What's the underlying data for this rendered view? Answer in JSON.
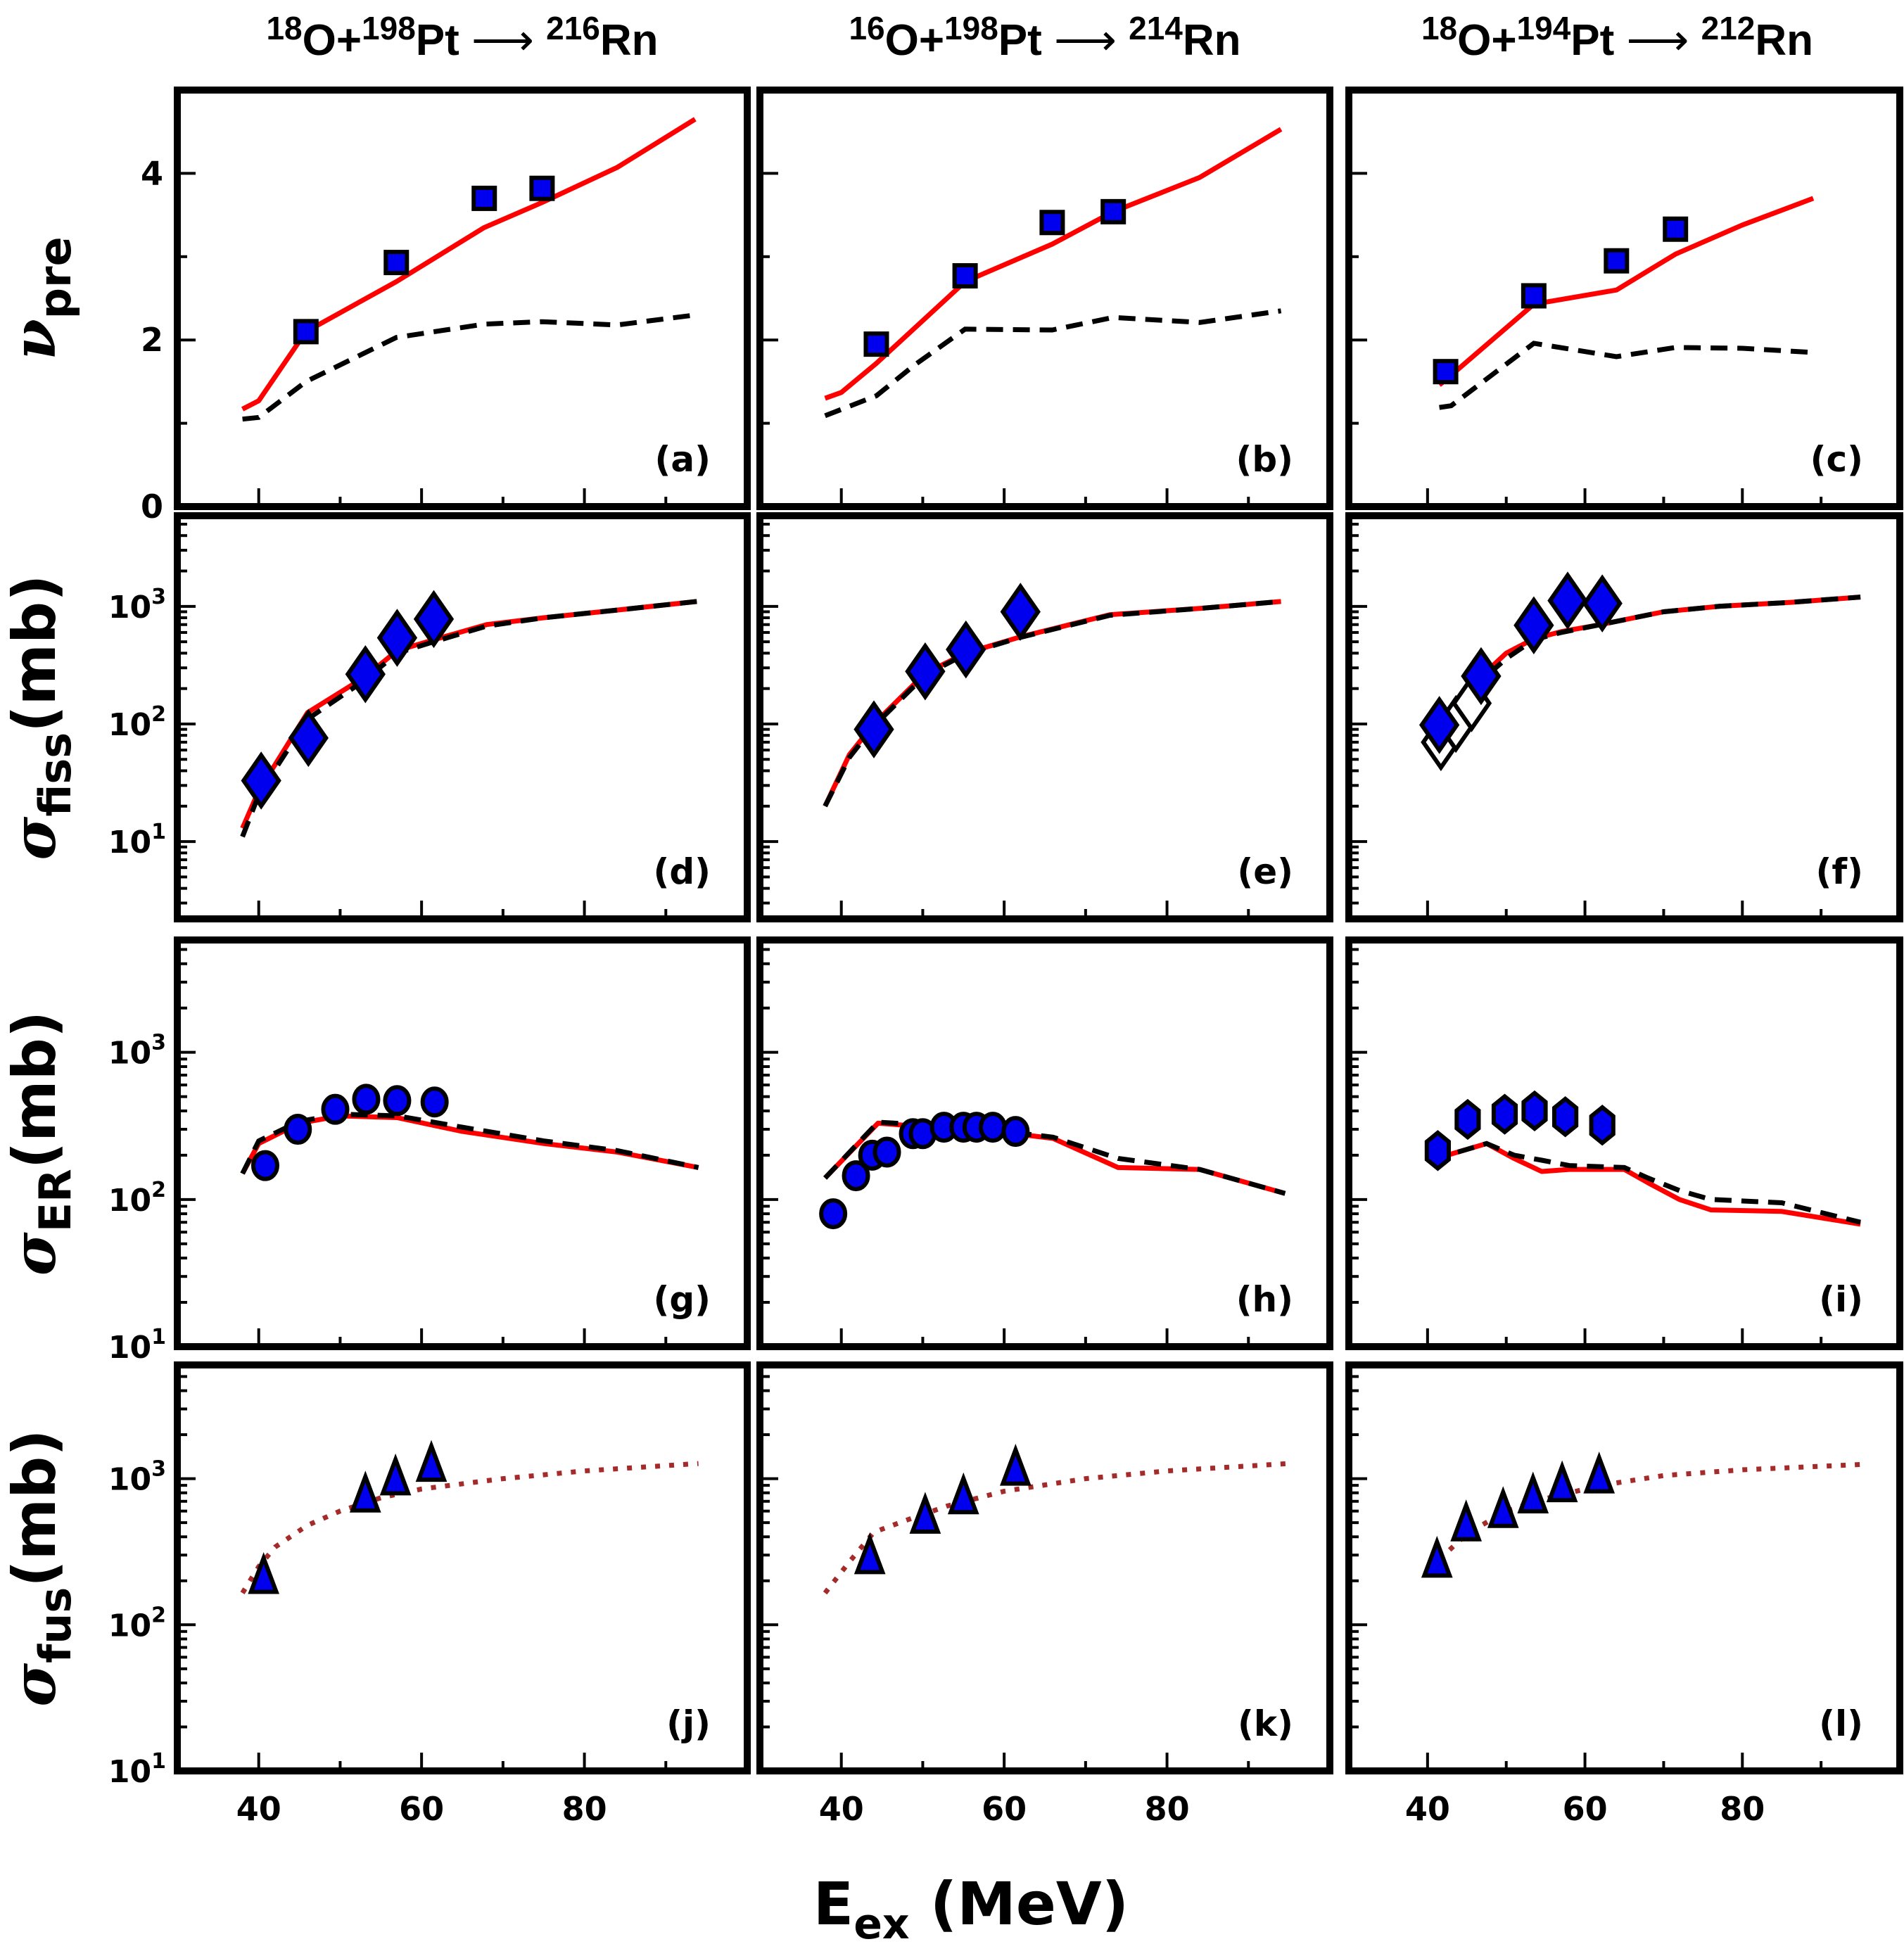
{
  "chart_data": {
    "type": "scatter",
    "layout": "4x3 grid of panels sharing x axis",
    "xlabel": "E",
    "xlabel_sub": "ex",
    "xlabel_unit": " (MeV)",
    "xlim": [
      30,
      100
    ],
    "x_ticks": [
      40,
      60,
      80
    ],
    "x_minor_ticks": [
      50,
      70,
      90
    ],
    "colors": {
      "marker_fill": "#0000EE",
      "marker_edge": "#000000",
      "solid_line": "#FF0000",
      "dashed_line": "#000000",
      "dotted_line": "#A52A2A",
      "open_marker_fill": "#FFFFFF"
    },
    "columns": [
      {
        "proj_mass": "18",
        "proj": "O",
        "target_mass": "198",
        "target": "Pt",
        "cn_mass": "216",
        "cn": "Rn"
      },
      {
        "proj_mass": "16",
        "proj": "O",
        "target_mass": "198",
        "target": "Pt",
        "cn_mass": "214",
        "cn": "Rn"
      },
      {
        "proj_mass": "18",
        "proj": "O",
        "target_mass": "194",
        "target": "Pt",
        "cn_mass": "212",
        "cn": "Rn"
      }
    ],
    "rows": [
      {
        "ylabel": "ν",
        "ylabel_sub": "pre",
        "ylabel_unit": "",
        "scale": "linear",
        "ylim": [
          0,
          5.0
        ],
        "y_ticks": [
          0,
          2,
          4
        ],
        "y_tick_labels": [
          "0",
          "2",
          "4"
        ],
        "y_minor_ticks": [
          1,
          3
        ]
      },
      {
        "ylabel": "σ",
        "ylabel_sub": "fiss",
        "ylabel_unit": "(mb)",
        "scale": "log",
        "ylim": [
          2.2,
          5900
        ],
        "y_ticks": [
          10,
          100,
          1000
        ],
        "y_tick_labels": [
          "10",
          "10",
          "10"
        ],
        "y_tick_exps": [
          "1",
          "2",
          "3"
        ]
      },
      {
        "ylabel": "σ",
        "ylabel_sub": "ER",
        "ylabel_unit": "(mb)",
        "scale": "log",
        "ylim": [
          10,
          5800
        ],
        "y_ticks": [
          10,
          100,
          1000
        ],
        "y_tick_labels": [
          "10",
          "10",
          "10"
        ],
        "y_tick_exps": [
          "1",
          "2",
          "3"
        ]
      },
      {
        "ylabel": "σ",
        "ylabel_sub": "fus",
        "ylabel_unit": "(mb)",
        "scale": "log",
        "ylim": [
          10,
          6000
        ],
        "y_ticks": [
          10,
          100,
          1000
        ],
        "y_tick_labels": [
          "10",
          "10",
          "10"
        ],
        "y_tick_exps": [
          "1",
          "2",
          "3"
        ]
      }
    ],
    "panels": [
      {
        "label": "(a)",
        "row": 0,
        "col": 0,
        "marker": "square",
        "points": {
          "x": [
            45.8,
            56.9,
            67.7,
            74.8
          ],
          "y": [
            2.1,
            2.93,
            3.7,
            3.82
          ]
        },
        "solid": {
          "x": [
            38,
            40,
            45.8,
            56.9,
            67.7,
            74.8,
            84,
            93.6
          ],
          "y": [
            1.17,
            1.27,
            2.1,
            2.7,
            3.35,
            3.65,
            4.07,
            4.65
          ]
        },
        "dashed": {
          "x": [
            38,
            40,
            45.8,
            56.9,
            67.7,
            74.8,
            84,
            93.6
          ],
          "y": [
            1.05,
            1.07,
            1.5,
            2.03,
            2.19,
            2.22,
            2.18,
            2.3
          ]
        }
      },
      {
        "label": "(b)",
        "row": 0,
        "col": 1,
        "marker": "square",
        "points": {
          "x": [
            44.3,
            55.2,
            65.9,
            73.4
          ],
          "y": [
            1.95,
            2.77,
            3.41,
            3.54
          ]
        },
        "solid": {
          "x": [
            38,
            40,
            44.3,
            55.2,
            65.9,
            73.4,
            84,
            94
          ],
          "y": [
            1.3,
            1.37,
            1.72,
            2.7,
            3.15,
            3.54,
            3.95,
            4.53
          ]
        },
        "dashed": {
          "x": [
            38,
            44.3,
            49,
            55.2,
            65.9,
            73.4,
            84,
            94
          ],
          "y": [
            1.09,
            1.33,
            1.7,
            2.13,
            2.12,
            2.27,
            2.21,
            2.35
          ]
        }
      },
      {
        "label": "(c)",
        "row": 0,
        "col": 2,
        "marker": "square",
        "points": {
          "x": [
            42.3,
            53.5,
            64,
            71.5
          ],
          "y": [
            1.62,
            2.53,
            2.95,
            3.33
          ]
        },
        "solid": {
          "x": [
            41.5,
            42.3,
            53.5,
            64,
            71.5,
            80,
            89
          ],
          "y": [
            1.46,
            1.52,
            2.43,
            2.6,
            3.03,
            3.38,
            3.7
          ]
        },
        "dashed": {
          "x": [
            41.5,
            43,
            53.5,
            64,
            71.5,
            80,
            89
          ],
          "y": [
            1.19,
            1.21,
            1.96,
            1.8,
            1.91,
            1.9,
            1.85
          ]
        }
      },
      {
        "label": "(d)",
        "row": 1,
        "col": 0,
        "marker": "diamond",
        "points": {
          "x": [
            40.3,
            46.1,
            53.1,
            57.0,
            61.5
          ],
          "y": [
            33,
            76,
            265,
            540,
            780
          ]
        },
        "solid": {
          "x": [
            38,
            40,
            46,
            53,
            57,
            61.5,
            68,
            75,
            84,
            93.8
          ],
          "y": [
            13,
            27,
            125,
            250,
            420,
            520,
            700,
            800,
            930,
            1100
          ]
        },
        "dashed": {
          "x": [
            38,
            40,
            46,
            53,
            57,
            61.5,
            68,
            75,
            84,
            93.8
          ],
          "y": [
            11,
            25,
            110,
            235,
            400,
            500,
            680,
            800,
            930,
            1100
          ]
        }
      },
      {
        "label": "(e)",
        "row": 1,
        "col": 1,
        "marker": "diamond",
        "points": {
          "x": [
            44.0,
            50.3,
            55.3,
            62.0
          ],
          "y": [
            90,
            280,
            430,
            900
          ]
        },
        "solid": {
          "x": [
            38,
            41,
            44,
            50.3,
            55.3,
            62,
            73,
            84,
            94
          ],
          "y": [
            20,
            55,
            100,
            270,
            400,
            550,
            850,
            960,
            1100
          ]
        },
        "dashed": {
          "x": [
            38,
            41,
            44,
            50.3,
            55.3,
            62,
            73,
            84,
            94
          ],
          "y": [
            20,
            52,
            96,
            260,
            395,
            545,
            840,
            960,
            1100
          ]
        }
      },
      {
        "label": "(f)",
        "row": 1,
        "col": 2,
        "marker": "diamond",
        "points": {
          "x": [
            41.5,
            46.8,
            53.5,
            57.8,
            62.2
          ],
          "y": [
            98,
            255,
            690,
            1120,
            1060
          ]
        },
        "open_points": {
          "x": [
            41.7,
            43.6,
            45.6
          ],
          "y": [
            70,
            100,
            150
          ]
        },
        "solid": {
          "x": [
            41.5,
            44,
            47,
            50,
            53.5,
            57,
            62,
            70,
            77,
            86,
            95
          ],
          "y": [
            80,
            150,
            260,
            400,
            530,
            610,
            700,
            900,
            1000,
            1080,
            1200
          ]
        },
        "dashed": {
          "x": [
            41.5,
            44,
            47,
            50,
            53.5,
            57,
            62,
            70,
            77,
            86,
            95
          ],
          "y": [
            78,
            140,
            240,
            360,
            520,
            600,
            700,
            900,
            1000,
            1080,
            1200
          ]
        }
      },
      {
        "label": "(g)",
        "row": 2,
        "col": 0,
        "marker": "circle",
        "points": {
          "x": [
            40.8,
            44.8,
            49.4,
            53.2,
            57.0,
            61.6
          ],
          "y": [
            170,
            300,
            410,
            480,
            470,
            460
          ]
        },
        "solid": {
          "x": [
            38,
            40,
            45,
            50,
            57,
            65,
            75,
            84,
            94
          ],
          "y": [
            150,
            240,
            330,
            370,
            360,
            290,
            240,
            210,
            165
          ]
        },
        "dashed": {
          "x": [
            38,
            40,
            45,
            50,
            57,
            65,
            75,
            84,
            94
          ],
          "y": [
            150,
            250,
            340,
            380,
            370,
            310,
            250,
            215,
            165
          ]
        }
      },
      {
        "label": "(h)",
        "row": 2,
        "col": 1,
        "marker": "circle",
        "points": {
          "x": [
            39.0,
            41.8,
            43.8,
            45.6,
            48.8,
            50.0,
            52.6,
            55.0,
            56.6,
            58.6,
            61.4
          ],
          "y": [
            80,
            145,
            200,
            210,
            280,
            280,
            310,
            310,
            310,
            310,
            290
          ]
        },
        "solid": {
          "x": [
            38,
            44.5,
            51,
            59,
            66,
            74,
            84,
            94.5
          ],
          "y": [
            140,
            330,
            310,
            290,
            260,
            165,
            160,
            110
          ]
        },
        "dashed": {
          "x": [
            38,
            44.5,
            51,
            59,
            66,
            74,
            84,
            94.5
          ],
          "y": [
            140,
            335,
            320,
            295,
            265,
            190,
            160,
            110
          ]
        }
      },
      {
        "label": "(i)",
        "row": 2,
        "col": 2,
        "marker": "hexagon",
        "points": {
          "x": [
            41.3,
            45.1,
            49.8,
            53.6,
            57.5,
            62.2
          ],
          "y": [
            215,
            350,
            380,
            400,
            365,
            320
          ]
        },
        "solid": {
          "x": [
            41,
            42.5,
            47.5,
            51,
            54.5,
            58,
            65,
            68,
            72,
            76,
            85,
            95
          ],
          "y": [
            170,
            200,
            240,
            190,
            155,
            160,
            160,
            130,
            100,
            85,
            83,
            68
          ]
        },
        "dashed": {
          "x": [
            41,
            42.5,
            47.5,
            51,
            54.5,
            58,
            65,
            68,
            72,
            76,
            85,
            95
          ],
          "y": [
            170,
            200,
            240,
            200,
            185,
            170,
            165,
            140,
            115,
            100,
            95,
            70
          ]
        }
      },
      {
        "label": "(j)",
        "row": 3,
        "col": 0,
        "marker": "triangle",
        "points": {
          "x": [
            40.6,
            53.1,
            56.8,
            61.2
          ],
          "y": [
            205,
            740,
            970,
            1200
          ]
        },
        "dotted": {
          "x": [
            38,
            40,
            42,
            46,
            50,
            55,
            60,
            70,
            80,
            94
          ],
          "y": [
            165,
            250,
            340,
            480,
            600,
            740,
            850,
            1000,
            1130,
            1270
          ]
        }
      },
      {
        "label": "(k)",
        "row": 3,
        "col": 1,
        "marker": "triangle",
        "points": {
          "x": [
            43.5,
            50.3,
            55.0,
            61.4
          ],
          "y": [
            280,
            530,
            720,
            1130
          ]
        },
        "dotted": {
          "x": [
            38,
            41,
            44,
            48,
            53,
            60,
            70,
            80,
            95
          ],
          "y": [
            165,
            270,
            430,
            520,
            650,
            820,
            1000,
            1130,
            1270
          ]
        }
      },
      {
        "label": "(l)",
        "row": 3,
        "col": 2,
        "marker": "triangle",
        "points": {
          "x": [
            41.2,
            44.9,
            49.6,
            53.4,
            57.1,
            61.8
          ],
          "y": [
            265,
            470,
            580,
            730,
            870,
            1000
          ]
        },
        "dotted": {
          "x": [
            41.5,
            45,
            50,
            55,
            62,
            70,
            80,
            95
          ],
          "y": [
            280,
            420,
            600,
            730,
            900,
            1050,
            1150,
            1250
          ]
        }
      }
    ]
  }
}
